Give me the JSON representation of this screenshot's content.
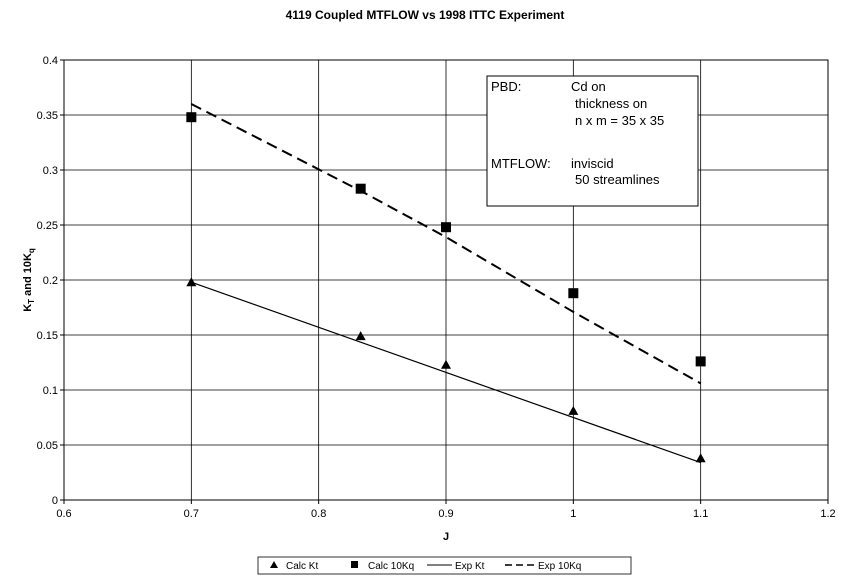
{
  "chart_data": {
    "type": "line",
    "title": "4119 Coupled MTFLOW vs 1998 ITTC Experiment",
    "xlabel": "J",
    "ylabel": {
      "main": "K",
      "sub1": "T",
      "mid": " and 10K",
      "sub2": "q"
    },
    "xlim": [
      0.6,
      1.2
    ],
    "ylim": [
      0,
      0.4
    ],
    "xticks": [
      0.6,
      0.7,
      0.8,
      0.9,
      1.0,
      1.1,
      1.2
    ],
    "xtick_labels": [
      "0.6",
      "0.7",
      "0.8",
      "0.9",
      "1",
      "1.1",
      "1.2"
    ],
    "yticks": [
      0,
      0.05,
      0.1,
      0.15,
      0.2,
      0.25,
      0.3,
      0.35,
      0.4
    ],
    "ytick_labels": [
      "0",
      "0.05",
      "0.1",
      "0.15",
      "0.2",
      "0.25",
      "0.3",
      "0.35",
      "0.4"
    ],
    "grid": true,
    "legend_position": "bottom",
    "series": [
      {
        "name": "Calc Kt",
        "style": "triangle",
        "x": [
          0.7,
          0.833,
          0.9,
          1.0,
          1.1
        ],
        "y": [
          0.198,
          0.149,
          0.123,
          0.081,
          0.038
        ]
      },
      {
        "name": "Calc 10Kq",
        "style": "square",
        "x": [
          0.7,
          0.833,
          0.9,
          1.0,
          1.1
        ],
        "y": [
          0.348,
          0.283,
          0.248,
          0.188,
          0.126
        ]
      },
      {
        "name": "Exp Kt",
        "style": "solid",
        "x": [
          0.7,
          1.1
        ],
        "y": [
          0.198,
          0.034
        ]
      },
      {
        "name": "Exp 10Kq",
        "style": "dashed",
        "x": [
          0.7,
          0.833,
          0.9,
          1.0,
          1.1
        ],
        "y": [
          0.36,
          0.281,
          0.239,
          0.171,
          0.106
        ]
      }
    ],
    "annotation": {
      "pbd_label": "PBD:",
      "pbd_lines": [
        "Cd on",
        "thickness on",
        "n x m = 35 x 35"
      ],
      "mtflow_label": "MTFLOW:",
      "mtflow_lines": [
        "inviscid",
        "50 streamlines"
      ]
    }
  }
}
